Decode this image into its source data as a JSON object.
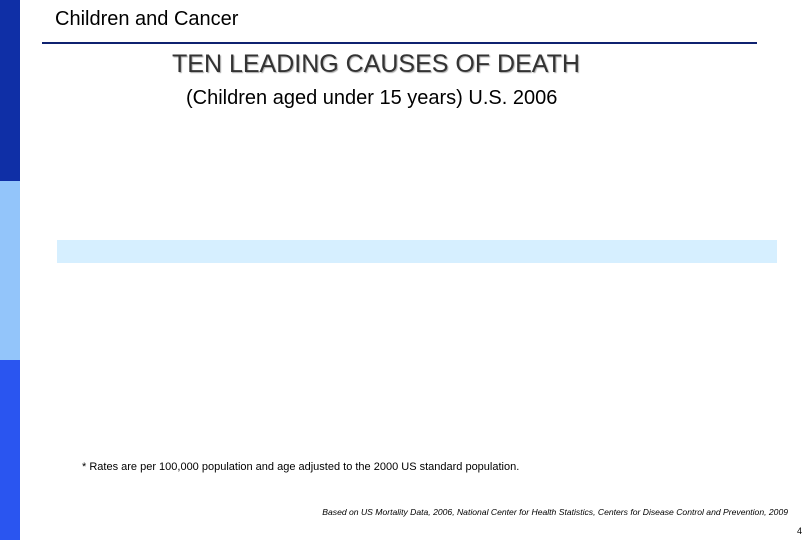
{
  "slide": {
    "header": "Children and Cancer",
    "title": "TEN LEADING CAUSES OF DEATH",
    "subtitle": "(Children aged under 15 years) U.S. 2006",
    "footnote": "* Rates are per 100,000 population and age adjusted to the 2000 US standard population.",
    "source": "Based on US Mortality Data, 2006, National Center for Health Statistics, Centers for Disease Control and Prevention, 2009",
    "page_number": "4"
  },
  "colors": {
    "sidebar_top": "#0f2fa6",
    "sidebar_middle": "#93c5fa",
    "sidebar_bottom": "#2a55f0",
    "header_rule": "#0f2270",
    "highlight_band": "#d6efff"
  }
}
